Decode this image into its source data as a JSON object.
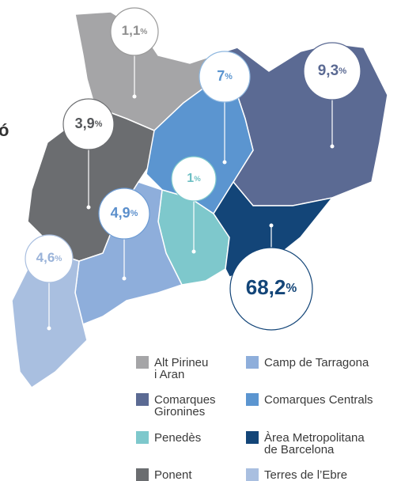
{
  "side_text": "ó",
  "regions": [
    {
      "name": [
        "Alt Pirineu",
        "i Aran"
      ],
      "value_label": "1,1%",
      "color": "#a5a5a7"
    },
    {
      "name": [
        "Comarques",
        "Gironines"
      ],
      "value_label": "9,3%",
      "color": "#5b6a93"
    },
    {
      "name": [
        "Penedès"
      ],
      "value_label": "1%",
      "color": "#7ec8cc"
    },
    {
      "name": [
        "Ponent"
      ],
      "value_label": "3,9%",
      "color": "#6b6d70"
    },
    {
      "name": [
        "Camp de Tarragona"
      ],
      "value_label": "4,9%",
      "color": "#8eaedb"
    },
    {
      "name": [
        "Comarques Centrals"
      ],
      "value_label": "7%",
      "color": "#5b95d0"
    },
    {
      "name": [
        "Àrea Metropolitana",
        "de Barcelona"
      ],
      "value_label": "68,2%",
      "color": "#134578"
    },
    {
      "name": [
        "Terres de l’Ebre"
      ],
      "value_label": "4,6%",
      "color": "#a9bfe0"
    }
  ]
}
